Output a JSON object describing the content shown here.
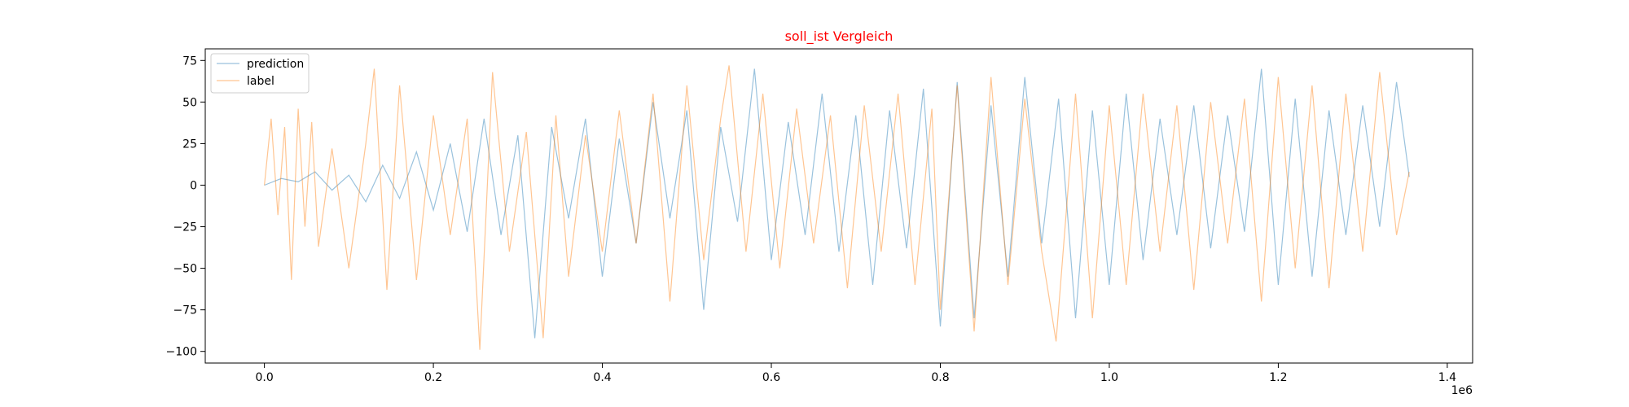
{
  "chart_data": {
    "type": "line",
    "title": "soll_ist Vergleich",
    "title_color": "#ff0000",
    "xlabel": "",
    "ylabel": "",
    "x_offset_text": "1e6",
    "xlim": [
      -70000,
      1430000
    ],
    "ylim": [
      -107,
      82
    ],
    "xticks": [
      0.0,
      0.2,
      0.4,
      0.6,
      0.8,
      1.0,
      1.2,
      1.4
    ],
    "xtick_labels": [
      "0.0",
      "0.2",
      "0.4",
      "0.6",
      "0.8",
      "1.0",
      "1.2",
      "1.4"
    ],
    "yticks": [
      75,
      50,
      25,
      0,
      -25,
      -50,
      -75,
      -100
    ],
    "ytick_labels": [
      "75",
      "50",
      "25",
      "0",
      "−25",
      "−50",
      "−75",
      "−100"
    ],
    "grid": false,
    "legend_position": "top-left",
    "series": [
      {
        "name": "prediction",
        "color": "#1f77b4",
        "alpha": 0.45,
        "x": [
          0,
          20000,
          40000,
          60000,
          80000,
          100000,
          120000,
          140000,
          160000,
          180000,
          200000,
          220000,
          240000,
          260000,
          280000,
          300000,
          320000,
          340000,
          360000,
          380000,
          400000,
          420000,
          440000,
          460000,
          480000,
          500000,
          520000,
          540000,
          560000,
          580000,
          600000,
          620000,
          640000,
          660000,
          680000,
          700000,
          720000,
          740000,
          760000,
          780000,
          800000,
          820000,
          840000,
          860000,
          880000,
          900000,
          920000,
          940000,
          960000,
          980000,
          1000000,
          1020000,
          1040000,
          1060000,
          1080000,
          1100000,
          1120000,
          1140000,
          1160000,
          1180000,
          1200000,
          1220000,
          1240000,
          1260000,
          1280000,
          1300000,
          1320000,
          1340000,
          1355000
        ],
        "values": [
          0,
          4,
          2,
          8,
          -3,
          6,
          -10,
          12,
          -8,
          20,
          -15,
          25,
          -28,
          40,
          -30,
          30,
          -92,
          35,
          -20,
          40,
          -55,
          28,
          -35,
          50,
          -20,
          45,
          -75,
          35,
          -22,
          70,
          -45,
          38,
          -30,
          55,
          -40,
          42,
          -60,
          45,
          -38,
          58,
          -85,
          62,
          -80,
          48,
          -55,
          65,
          -35,
          52,
          -80,
          45,
          -60,
          55,
          -45,
          40,
          -30,
          48,
          -38,
          42,
          -28,
          70,
          -60,
          52,
          -55,
          45,
          -30,
          48,
          -25,
          62,
          5
        ]
      },
      {
        "name": "label",
        "color": "#ff7f0e",
        "alpha": 0.45,
        "x": [
          0,
          8000,
          16000,
          24000,
          32000,
          40000,
          48000,
          56000,
          64000,
          80000,
          100000,
          120000,
          130000,
          145000,
          160000,
          180000,
          200000,
          220000,
          240000,
          255000,
          270000,
          290000,
          310000,
          330000,
          345000,
          360000,
          380000,
          400000,
          420000,
          440000,
          460000,
          480000,
          500000,
          520000,
          540000,
          550000,
          570000,
          590000,
          610000,
          630000,
          650000,
          670000,
          690000,
          710000,
          730000,
          750000,
          770000,
          790000,
          800000,
          820000,
          840000,
          860000,
          880000,
          900000,
          920000,
          937000,
          960000,
          980000,
          1000000,
          1020000,
          1040000,
          1060000,
          1080000,
          1100000,
          1120000,
          1140000,
          1160000,
          1180000,
          1200000,
          1220000,
          1240000,
          1260000,
          1280000,
          1300000,
          1320000,
          1340000,
          1355000
        ],
        "values": [
          0,
          40,
          -18,
          35,
          -57,
          46,
          -25,
          38,
          -37,
          22,
          -50,
          25,
          70,
          -63,
          60,
          -57,
          42,
          -30,
          40,
          -99,
          68,
          -40,
          32,
          -92,
          42,
          -55,
          30,
          -40,
          45,
          -35,
          55,
          -70,
          60,
          -45,
          40,
          72,
          -40,
          55,
          -50,
          46,
          -35,
          42,
          -62,
          48,
          -40,
          55,
          -60,
          46,
          -75,
          60,
          -88,
          65,
          -60,
          52,
          -40,
          -94,
          55,
          -80,
          48,
          -60,
          55,
          -40,
          48,
          -63,
          50,
          -35,
          52,
          -70,
          65,
          -50,
          60,
          -62,
          55,
          -40,
          68,
          -30,
          8
        ]
      }
    ]
  }
}
